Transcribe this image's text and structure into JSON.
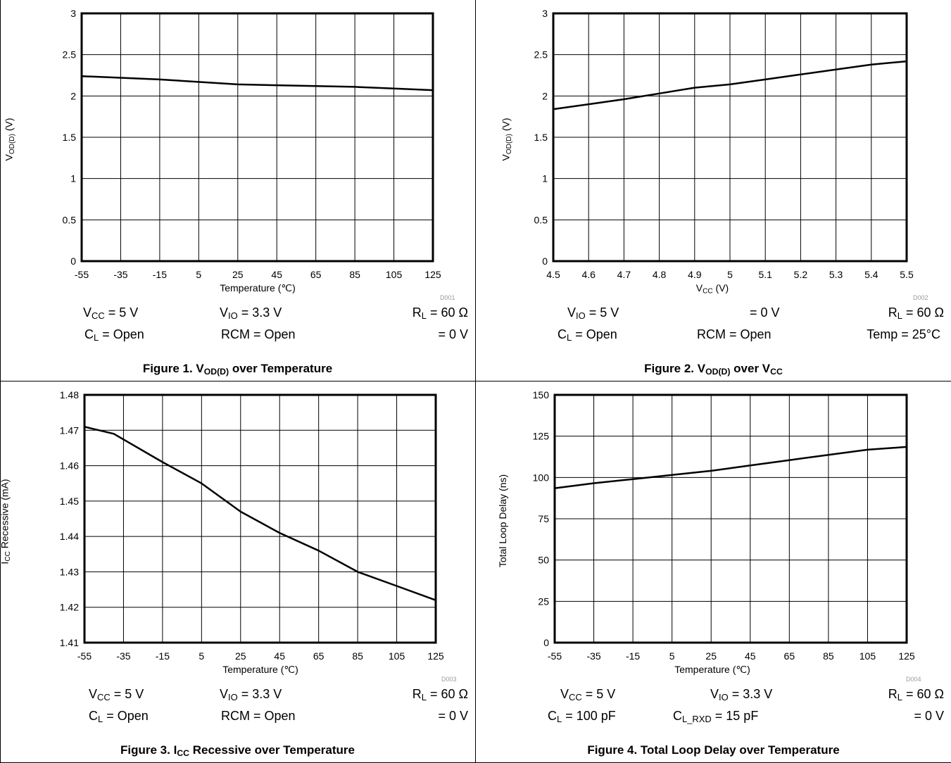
{
  "chart_data": [
    {
      "type": "line",
      "figure_caption": "Figure 1. V_OD(D) over Temperature",
      "xlabel": "Temperature (℃)",
      "ylabel": "V_OD(D) (V)",
      "x_ticks": [
        "-55",
        "-35",
        "-15",
        "5",
        "25",
        "45",
        "65",
        "85",
        "105",
        "125"
      ],
      "y_ticks": [
        "0",
        "0.5",
        "1",
        "1.5",
        "2",
        "2.5",
        "3"
      ],
      "xlim": [
        -55,
        125
      ],
      "ylim": [
        0,
        3
      ],
      "grid": true,
      "code": "D001",
      "series": [
        {
          "x": [
            -55,
            -35,
            -15,
            5,
            25,
            45,
            65,
            85,
            105,
            125
          ],
          "y": [
            2.24,
            2.22,
            2.2,
            2.17,
            2.14,
            2.13,
            2.12,
            2.11,
            2.09,
            2.07
          ]
        }
      ]
    },
    {
      "type": "line",
      "figure_caption": "Figure 2. V_OD(D) over V_CC",
      "xlabel": "V_CC (V)",
      "ylabel": "V_OD(D) (V)",
      "x_ticks": [
        "4.5",
        "4.6",
        "4.7",
        "4.8",
        "4.9",
        "5",
        "5.1",
        "5.2",
        "5.3",
        "5.4",
        "5.5"
      ],
      "y_ticks": [
        "0",
        "0.5",
        "1",
        "1.5",
        "2",
        "2.5",
        "3"
      ],
      "xlim": [
        4.5,
        5.5
      ],
      "ylim": [
        0,
        3
      ],
      "grid": true,
      "code": "D002",
      "series": [
        {
          "x": [
            4.5,
            4.6,
            4.7,
            4.8,
            4.9,
            5.0,
            5.1,
            5.2,
            5.3,
            5.4,
            5.5
          ],
          "y": [
            1.84,
            1.9,
            1.96,
            2.03,
            2.1,
            2.14,
            2.2,
            2.26,
            2.32,
            2.38,
            2.42
          ]
        }
      ]
    },
    {
      "type": "line",
      "figure_caption": "Figure 3. I_CC Recessive over Temperature",
      "xlabel": "Temperature (℃)",
      "ylabel": "I_CC Recessive (mA)",
      "x_ticks": [
        "-55",
        "-35",
        "-15",
        "5",
        "25",
        "45",
        "65",
        "85",
        "105",
        "125"
      ],
      "y_ticks": [
        "1.41",
        "1.42",
        "1.43",
        "1.44",
        "1.45",
        "1.46",
        "1.47",
        "1.48"
      ],
      "xlim": [
        -55,
        125
      ],
      "ylim": [
        1.41,
        1.48
      ],
      "grid": true,
      "code": "D003",
      "series": [
        {
          "x": [
            -55,
            -40,
            -15,
            5,
            25,
            45,
            65,
            85,
            105,
            125
          ],
          "y": [
            1.471,
            1.469,
            1.461,
            1.455,
            1.447,
            1.441,
            1.436,
            1.43,
            1.426,
            1.422
          ]
        }
      ]
    },
    {
      "type": "line",
      "figure_caption": "Figure 4. Total Loop Delay over Temperature",
      "xlabel": "Temperature (℃)",
      "ylabel": "Total Loop Delay (ns)",
      "x_ticks": [
        "-55",
        "-35",
        "-15",
        "5",
        "25",
        "45",
        "65",
        "85",
        "105",
        "125"
      ],
      "y_ticks": [
        "0",
        "25",
        "50",
        "75",
        "100",
        "125",
        "150"
      ],
      "xlim": [
        -55,
        125
      ],
      "ylim": [
        0,
        150
      ],
      "grid": true,
      "code": "D004",
      "series": [
        {
          "x": [
            -55,
            -35,
            -15,
            5,
            25,
            45,
            65,
            85,
            105,
            125
          ],
          "y": [
            93.5,
            96.5,
            99,
            101.5,
            104,
            107.3,
            110.5,
            113.7,
            116.8,
            118.5
          ]
        }
      ]
    }
  ],
  "figures": [
    {
      "ylabel_main": "V",
      "ylabel_sub": "OD(D)",
      "ylabel_rest": " (V)",
      "xlabel_main": "Temperature (℃)",
      "xlabel_sub": "",
      "xlabel_rest": "",
      "code": "D001",
      "cond": [
        {
          "main": "V",
          "sub": "CC",
          "rest": " = 5 V"
        },
        {
          "main": "V",
          "sub": "IO",
          "rest": " = 3.3 V"
        },
        {
          "main": "R",
          "sub": "L",
          "rest": " = 60 Ω"
        },
        {
          "main": "C",
          "sub": "L",
          "rest": " = Open"
        },
        {
          "main": "RCM = Open",
          "sub": "",
          "rest": ""
        },
        {
          "main": "= 0 V",
          "sub": "",
          "rest": ""
        }
      ],
      "cap_pre": "Figure 1. V",
      "cap_sub1": "OD(D)",
      "cap_mid": " over Temperature",
      "cap_sub2": "",
      "cap_post": ""
    },
    {
      "ylabel_main": "V",
      "ylabel_sub": "OD(D)",
      "ylabel_rest": " (V)",
      "xlabel_main": "V",
      "xlabel_sub": "CC",
      "xlabel_rest": " (V)",
      "code": "D002",
      "cond": [
        {
          "main": "V",
          "sub": "IO",
          "rest": " = 5 V"
        },
        {
          "main": "= 0 V",
          "sub": "",
          "rest": ""
        },
        {
          "main": "R",
          "sub": "L",
          "rest": " = 60 Ω"
        },
        {
          "main": "C",
          "sub": "L",
          "rest": " = Open"
        },
        {
          "main": "RCM = Open",
          "sub": "",
          "rest": ""
        },
        {
          "main": "Temp = 25°C",
          "sub": "",
          "rest": ""
        }
      ],
      "cap_pre": "Figure 2. V",
      "cap_sub1": "OD(D)",
      "cap_mid": " over V",
      "cap_sub2": "CC",
      "cap_post": ""
    },
    {
      "ylabel_main": "I",
      "ylabel_sub": "CC",
      "ylabel_rest": " Recessive (mA)",
      "xlabel_main": "Temperature (℃)",
      "xlabel_sub": "",
      "xlabel_rest": "",
      "code": "D003",
      "cond": [
        {
          "main": "V",
          "sub": "CC",
          "rest": " = 5 V"
        },
        {
          "main": "V",
          "sub": "IO",
          "rest": " = 3.3 V"
        },
        {
          "main": "R",
          "sub": "L",
          "rest": " = 60 Ω"
        },
        {
          "main": "C",
          "sub": "L",
          "rest": " = Open"
        },
        {
          "main": "RCM = Open",
          "sub": "",
          "rest": ""
        },
        {
          "main": "= 0 V",
          "sub": "",
          "rest": ""
        }
      ],
      "cap_pre": "Figure 3. I",
      "cap_sub1": "CC",
      "cap_mid": " Recessive over Temperature",
      "cap_sub2": "",
      "cap_post": ""
    },
    {
      "ylabel_main": "Total Loop Delay (ns)",
      "ylabel_sub": "",
      "ylabel_rest": "",
      "xlabel_main": "Temperature (℃)",
      "xlabel_sub": "",
      "xlabel_rest": "",
      "code": "D004",
      "cond": [
        {
          "main": "V",
          "sub": "CC",
          "rest": " = 5 V"
        },
        {
          "main": "V",
          "sub": "IO",
          "rest": " = 3.3 V"
        },
        {
          "main": "R",
          "sub": "L",
          "rest": " = 60 Ω"
        },
        {
          "main": "C",
          "sub": "L",
          "rest": " = 100 pF"
        },
        {
          "main": "C",
          "sub": "L_RXD",
          "rest": " = 15 pF"
        },
        {
          "main": "= 0 V",
          "sub": "",
          "rest": ""
        }
      ],
      "cap_pre": "Figure 4. Total Loop Delay over Temperature",
      "cap_sub1": "",
      "cap_mid": "",
      "cap_sub2": "",
      "cap_post": ""
    }
  ]
}
